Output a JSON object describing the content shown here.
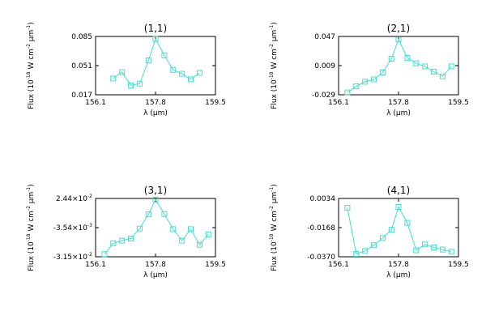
{
  "chart_data": [
    {
      "type": "line",
      "title": "(1,1)",
      "xlabel": "λ (μm)",
      "ylabel": "Flux (10^-18 W cm^-2 μm^-1)",
      "xlim": [
        156.1,
        159.5
      ],
      "xticks": [
        "156.1",
        "157.8",
        "159.5"
      ],
      "ylim": [
        0.017,
        0.085
      ],
      "yticks": [
        {
          "value": 0.085,
          "label": "0.085"
        },
        {
          "value": 0.051,
          "label": "0.051"
        },
        {
          "value": 0.017,
          "label": "0.017"
        }
      ],
      "color": "#40e0d0",
      "marker": "square",
      "x": [
        156.6,
        156.85,
        157.1,
        157.35,
        157.6,
        157.8,
        158.05,
        158.3,
        158.55,
        158.8,
        159.05
      ],
      "y": [
        0.036,
        0.0435,
        0.028,
        0.03,
        0.057,
        0.082,
        0.063,
        0.046,
        0.0415,
        0.035,
        0.0425
      ]
    },
    {
      "type": "line",
      "title": "(2,1)",
      "xlabel": "λ (μm)",
      "ylabel": "Flux (10^-18 W cm^-2 μm^-1)",
      "xlim": [
        156.1,
        159.5
      ],
      "xticks": [
        "156.1",
        "157.8",
        "159.5"
      ],
      "ylim": [
        -0.029,
        0.047
      ],
      "yticks": [
        {
          "value": 0.047,
          "label": "0.047"
        },
        {
          "value": 0.009,
          "label": "0.009"
        },
        {
          "value": -0.029,
          "label": "-0.029"
        }
      ],
      "color": "#40e0d0",
      "marker": "square",
      "x": [
        156.35,
        156.6,
        156.85,
        157.1,
        157.35,
        157.6,
        157.8,
        158.05,
        158.3,
        158.55,
        158.8,
        159.05,
        159.3
      ],
      "y": [
        -0.026,
        -0.018,
        -0.012,
        -0.009,
        0.0,
        0.018,
        0.043,
        0.019,
        0.012,
        0.008,
        0.001,
        -0.005,
        0.008
      ]
    },
    {
      "type": "line",
      "title": "(3,1)",
      "xlabel": "λ (μm)",
      "ylabel": "Flux (10^-18 W cm^-2 μm^-1)",
      "xlim": [
        156.1,
        159.5
      ],
      "xticks": [
        "156.1",
        "157.8",
        "159.5"
      ],
      "ylim": [
        -0.0315,
        0.0244
      ],
      "yticks": [
        {
          "value": 0.0244,
          "label": "2.44×10^-2"
        },
        {
          "value": -0.00354,
          "label": "-3.54×10^-3"
        },
        {
          "value": -0.0315,
          "label": "-3.15×10^-2"
        }
      ],
      "color": "#40e0d0",
      "marker": "square",
      "x": [
        156.35,
        156.6,
        156.85,
        157.1,
        157.35,
        157.6,
        157.8,
        158.05,
        158.3,
        158.55,
        158.8,
        159.05,
        159.3
      ],
      "y": [
        -0.029,
        -0.0185,
        -0.016,
        -0.014,
        -0.0045,
        0.0092,
        0.0232,
        0.0095,
        -0.005,
        -0.016,
        -0.005,
        -0.02,
        -0.01
      ]
    },
    {
      "type": "line",
      "title": "(4,1)",
      "xlabel": "λ (μm)",
      "ylabel": "Flux (10^-18 W cm^-2 μm^-1)",
      "xlim": [
        156.1,
        159.5
      ],
      "xticks": [
        "156.1",
        "157.8",
        "159.5"
      ],
      "ylim": [
        -0.037,
        0.0034
      ],
      "yticks": [
        {
          "value": 0.0034,
          "label": "0.0034"
        },
        {
          "value": -0.0168,
          "label": "-0.0168"
        },
        {
          "value": -0.037,
          "label": "-0.0370"
        }
      ],
      "color": "#40e0d0",
      "marker": "square",
      "x": [
        156.35,
        156.6,
        156.85,
        157.1,
        157.35,
        157.6,
        157.8,
        158.05,
        158.3,
        158.55,
        158.8,
        159.05,
        159.3
      ],
      "y": [
        -0.003,
        -0.035,
        -0.033,
        -0.029,
        -0.024,
        -0.0183,
        -0.0025,
        -0.0135,
        -0.0325,
        -0.0285,
        -0.0305,
        -0.032,
        -0.0335
      ]
    }
  ]
}
